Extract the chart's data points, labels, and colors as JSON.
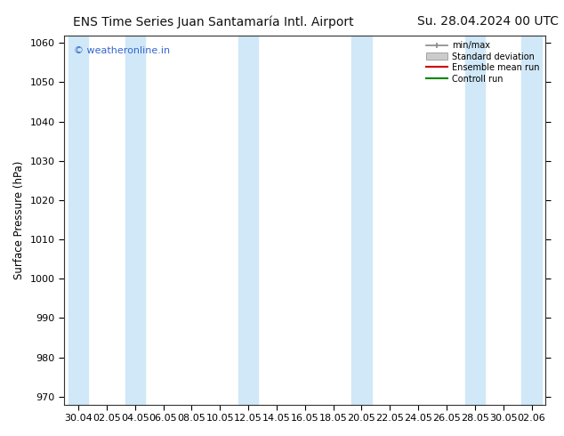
{
  "title_left": "ENS Time Series Juan Santamaría Intl. Airport",
  "title_right": "Su. 28.04.2024 00 UTC",
  "ylabel": "Surface Pressure (hPa)",
  "ylim": [
    968,
    1062
  ],
  "yticks": [
    970,
    980,
    990,
    1000,
    1010,
    1020,
    1030,
    1040,
    1050,
    1060
  ],
  "x_labels": [
    "30.04",
    "02.05",
    "04.05",
    "06.05",
    "08.05",
    "10.05",
    "12.05",
    "14.05",
    "16.05",
    "18.05",
    "20.05",
    "22.05",
    "24.05",
    "26.05",
    "28.05",
    "30.05",
    "02.06"
  ],
  "watermark": "© weatheronline.in",
  "watermark_color": "#3366cc",
  "legend_entries": [
    "min/max",
    "Standard deviation",
    "Ensemble mean run",
    "Controll run"
  ],
  "bg_color": "#ffffff",
  "plot_bg_color": "#ffffff",
  "band_color": "#d0e8f8",
  "band_indices": [
    0,
    2,
    6,
    10,
    14,
    16
  ],
  "title_fontsize": 10,
  "tick_fontsize": 8,
  "ylabel_fontsize": 8.5
}
